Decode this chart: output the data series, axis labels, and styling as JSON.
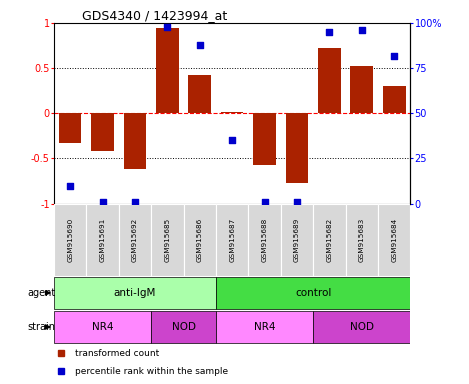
{
  "title": "GDS4340 / 1423994_at",
  "samples": [
    "GSM915690",
    "GSM915691",
    "GSM915692",
    "GSM915685",
    "GSM915686",
    "GSM915687",
    "GSM915688",
    "GSM915689",
    "GSM915682",
    "GSM915683",
    "GSM915684"
  ],
  "bar_values": [
    -0.33,
    -0.42,
    -0.62,
    0.95,
    0.42,
    0.02,
    -0.57,
    -0.77,
    0.72,
    0.52,
    0.3
  ],
  "percentile_values": [
    10,
    1,
    1,
    98,
    88,
    35,
    1,
    1,
    95,
    96,
    82
  ],
  "bar_color": "#AA2200",
  "dot_color": "#0000CC",
  "ylim": [
    -1,
    1
  ],
  "y2lim": [
    0,
    100
  ],
  "yticks": [
    -1,
    -0.5,
    0,
    0.5,
    1
  ],
  "ytick_labels": [
    "-1",
    "-0.5",
    "0",
    "0.5",
    "1"
  ],
  "y2ticks": [
    0,
    25,
    50,
    75,
    100
  ],
  "y2tick_labels": [
    "0",
    "25",
    "50",
    "75",
    "100%"
  ],
  "hlines_dotted": [
    -0.5,
    0.5
  ],
  "hline_zero": 0,
  "agent_groups": [
    {
      "label": "anti-IgM",
      "start": 0,
      "end": 5,
      "color": "#AAFFAA"
    },
    {
      "label": "control",
      "start": 5,
      "end": 11,
      "color": "#44DD44"
    }
  ],
  "strain_groups": [
    {
      "label": "NR4",
      "start": 0,
      "end": 3,
      "color": "#FF88FF"
    },
    {
      "label": "NOD",
      "start": 3,
      "end": 5,
      "color": "#CC44CC"
    },
    {
      "label": "NR4",
      "start": 5,
      "end": 8,
      "color": "#FF88FF"
    },
    {
      "label": "NOD",
      "start": 8,
      "end": 11,
      "color": "#CC44CC"
    }
  ],
  "legend_items": [
    {
      "label": "transformed count",
      "color": "#AA2200"
    },
    {
      "label": "percentile rank within the sample",
      "color": "#0000CC"
    }
  ],
  "agent_label": "agent",
  "strain_label": "strain",
  "figsize": [
    4.69,
    3.84
  ],
  "dpi": 100
}
